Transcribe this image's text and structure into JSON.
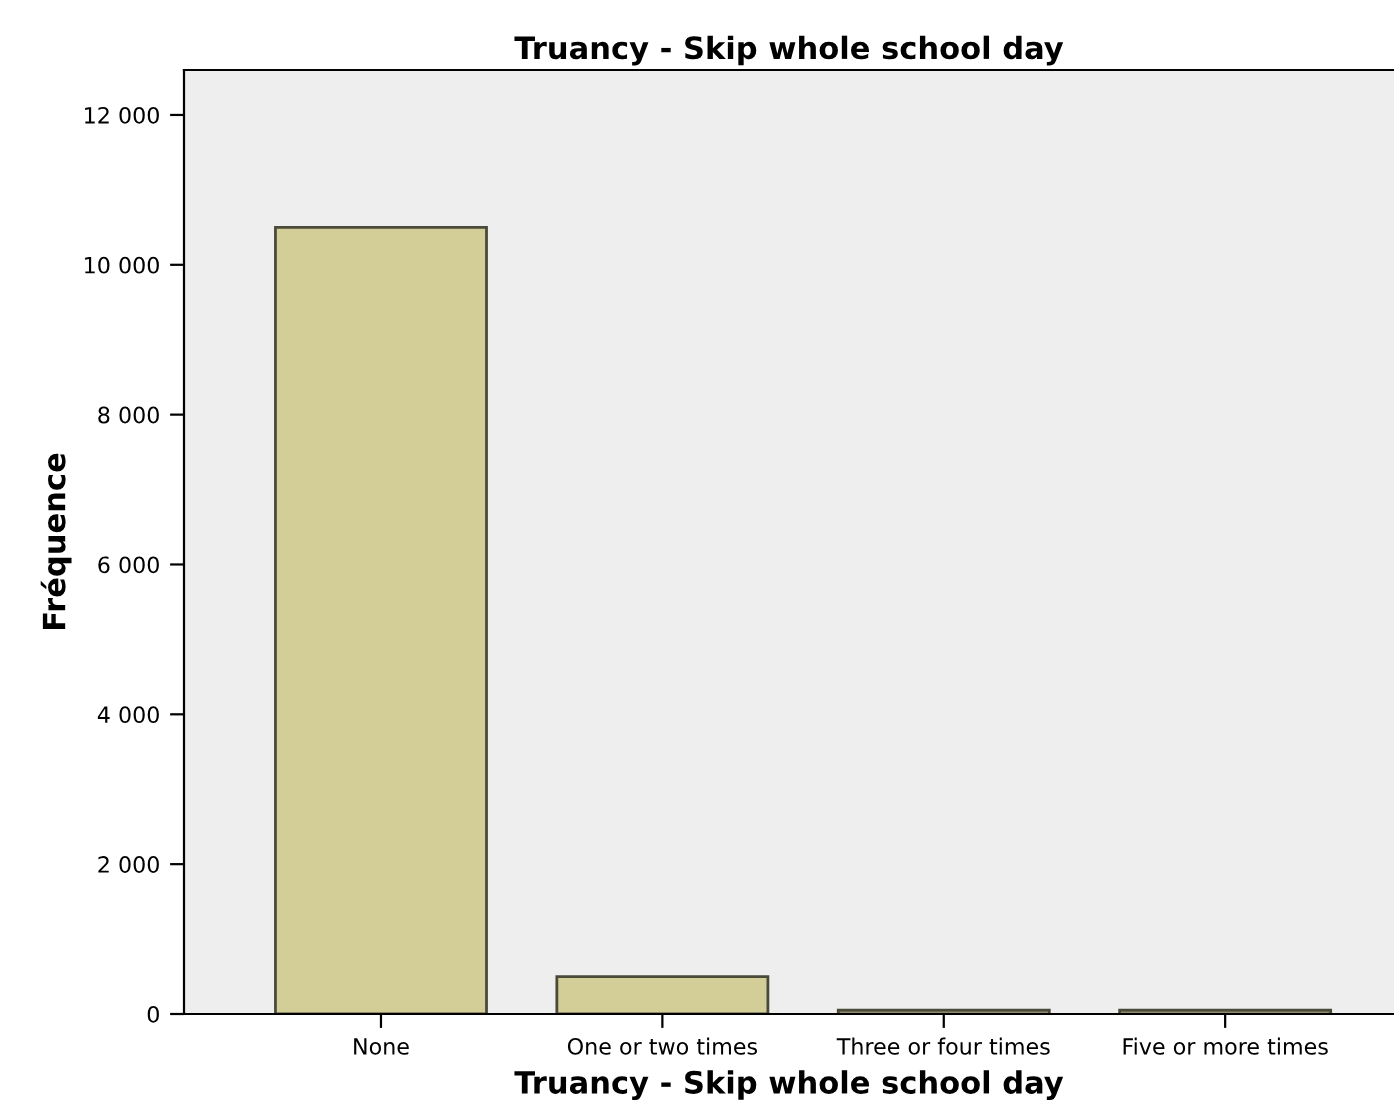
{
  "chart_data": {
    "type": "bar",
    "title": "Truancy - Skip whole school day",
    "xlabel": "Truancy - Skip whole school day",
    "ylabel": "Fréquence",
    "categories": [
      "None",
      "One or two times",
      "Three or four times",
      "Five or more times"
    ],
    "values": [
      10500,
      500,
      50,
      50
    ],
    "color": "#d3ce97",
    "ylim": [
      0,
      12600
    ],
    "yticks": [
      {
        "value": 0,
        "label": "0"
      },
      {
        "value": 2000,
        "label": "2 000"
      },
      {
        "value": 4000,
        "label": "4 000"
      },
      {
        "value": 6000,
        "label": "6 000"
      },
      {
        "value": 8000,
        "label": "8 000"
      },
      {
        "value": 10000,
        "label": "10 000"
      },
      {
        "value": 12000,
        "label": "12 000"
      }
    ],
    "grid": false
  }
}
